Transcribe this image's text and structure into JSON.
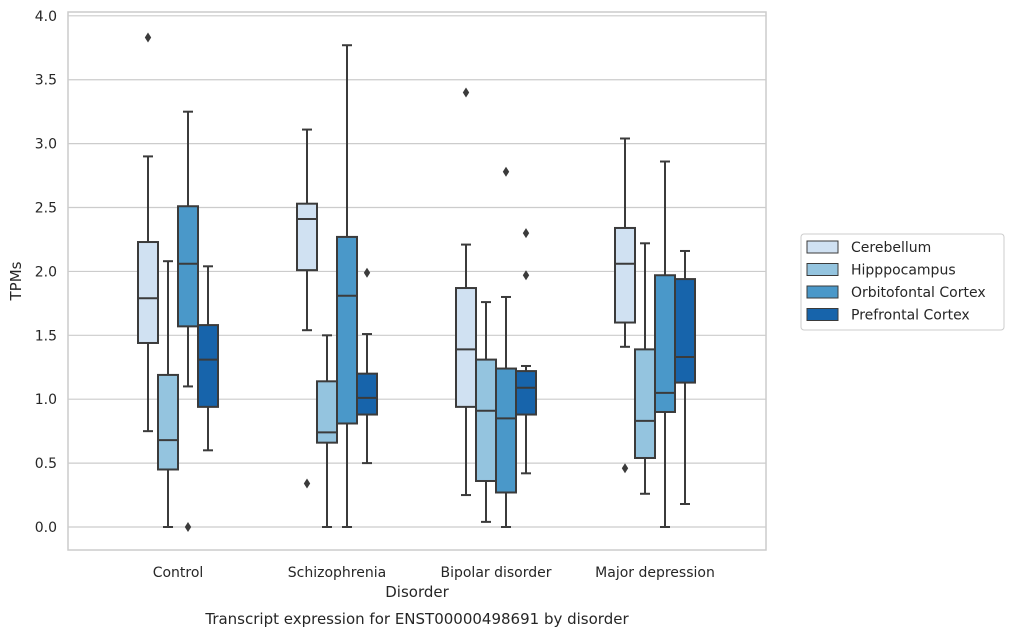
{
  "chart_data": {
    "type": "boxplot",
    "caption": "Transcript expression for ENST00000498691 by disorder",
    "xlabel": "Disorder",
    "ylabel": "TPMs",
    "ylim": [
      -0.18,
      4.03
    ],
    "yticks": [
      "0.0",
      "0.5",
      "1.0",
      "1.5",
      "2.0",
      "2.5",
      "3.0",
      "3.5",
      "4.0"
    ],
    "grid": "horizontal",
    "legend_position": "right",
    "categories": [
      "Control",
      "Schizophrenia",
      "Bipolar disorder",
      "Major depression"
    ],
    "series": [
      {
        "name": "Cerebellum",
        "color": "#d0e1f2",
        "boxes": [
          {
            "min": 0.75,
            "q1": 1.44,
            "median": 1.79,
            "q3": 2.23,
            "max": 2.9,
            "outliers": [
              3.83
            ]
          },
          {
            "min": 1.54,
            "q1": 2.01,
            "median": 2.41,
            "q3": 2.53,
            "max": 3.11,
            "outliers": [
              0.34
            ]
          },
          {
            "min": 0.25,
            "q1": 0.94,
            "median": 1.39,
            "q3": 1.87,
            "max": 2.21,
            "outliers": [
              3.4
            ]
          },
          {
            "min": 1.41,
            "q1": 1.6,
            "median": 2.06,
            "q3": 2.34,
            "max": 3.04,
            "outliers": [
              0.46
            ]
          }
        ]
      },
      {
        "name": "Hipppocampus",
        "color": "#94c4df",
        "boxes": [
          {
            "min": 0.0,
            "q1": 0.45,
            "median": 0.68,
            "q3": 1.19,
            "max": 2.08,
            "outliers": []
          },
          {
            "min": 0.0,
            "q1": 0.66,
            "median": 0.74,
            "q3": 1.14,
            "max": 1.5,
            "outliers": []
          },
          {
            "min": 0.04,
            "q1": 0.36,
            "median": 0.91,
            "q3": 1.31,
            "max": 1.76,
            "outliers": []
          },
          {
            "min": 0.26,
            "q1": 0.54,
            "median": 0.83,
            "q3": 1.39,
            "max": 2.22,
            "outliers": []
          }
        ]
      },
      {
        "name": "Orbitofontal Cortex",
        "color": "#4a98c9",
        "boxes": [
          {
            "min": 1.1,
            "q1": 1.57,
            "median": 2.06,
            "q3": 2.51,
            "max": 3.25,
            "outliers": [
              0.0
            ]
          },
          {
            "min": 0.0,
            "q1": 0.81,
            "median": 1.81,
            "q3": 2.27,
            "max": 3.77,
            "outliers": []
          },
          {
            "min": 0.0,
            "q1": 0.27,
            "median": 0.85,
            "q3": 1.24,
            "max": 1.8,
            "outliers": [
              2.78
            ]
          },
          {
            "min": 0.0,
            "q1": 0.9,
            "median": 1.05,
            "q3": 1.97,
            "max": 2.86,
            "outliers": []
          }
        ]
      },
      {
        "name": "Prefrontal Cortex",
        "color": "#1764ab",
        "boxes": [
          {
            "min": 0.6,
            "q1": 0.94,
            "median": 1.31,
            "q3": 1.58,
            "max": 2.04,
            "outliers": []
          },
          {
            "min": 0.5,
            "q1": 0.88,
            "median": 1.01,
            "q3": 1.2,
            "max": 1.51,
            "outliers": [
              1.99
            ]
          },
          {
            "min": 0.42,
            "q1": 0.88,
            "median": 1.09,
            "q3": 1.22,
            "max": 1.26,
            "outliers": [
              2.3,
              1.97
            ]
          },
          {
            "min": 0.18,
            "q1": 1.13,
            "median": 1.33,
            "q3": 1.94,
            "max": 2.16,
            "outliers": []
          }
        ]
      }
    ]
  }
}
